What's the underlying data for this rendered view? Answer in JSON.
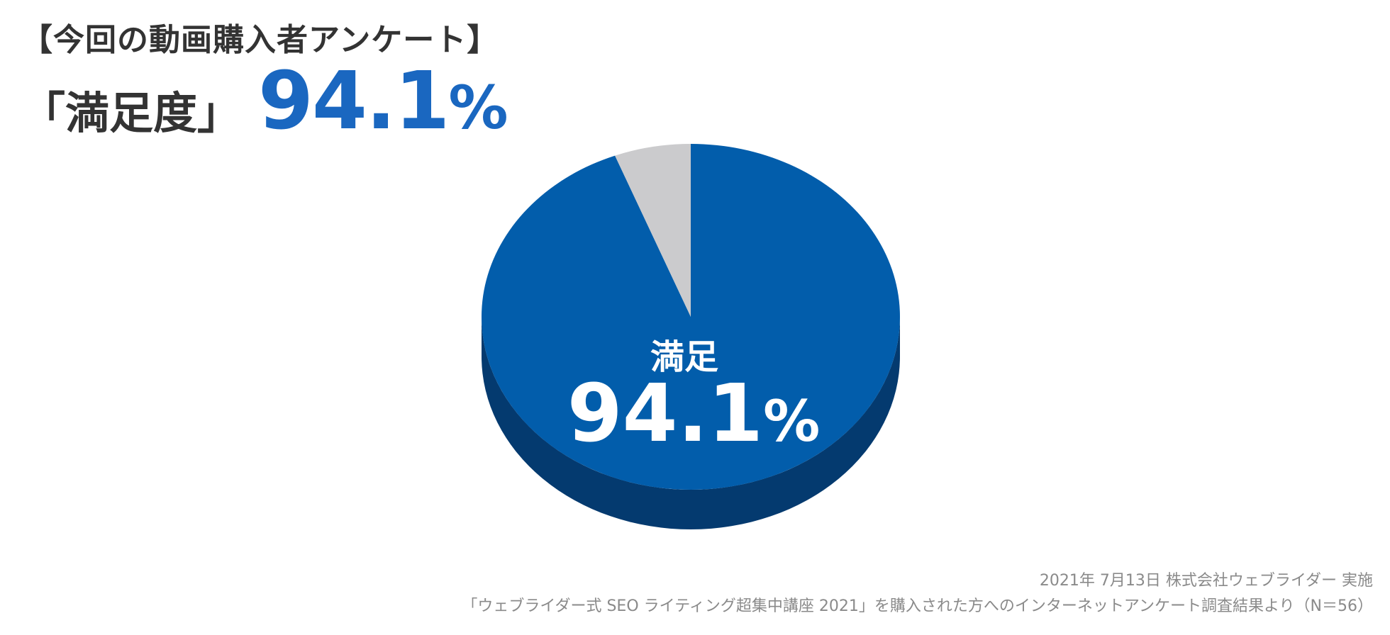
{
  "header": {
    "subtitle": "【今回の動画購入者アンケート】",
    "title_label": "「満足度」",
    "title_value": "94.1",
    "title_unit": "%"
  },
  "chart_data": {
    "type": "pie",
    "style": "3d",
    "slices": [
      {
        "label": "満足",
        "value": 94.1,
        "color": "#025dab",
        "side_color": "#043a6f",
        "display_value": "94.1",
        "display_unit": "%"
      },
      {
        "label": "",
        "value": 5.9,
        "color": "#cbcbcd",
        "side_color": "#a9a9ab"
      }
    ]
  },
  "footer": {
    "line1": "2021年 7月13日 株式会社ウェブライダー 実施",
    "line2": "「ウェブライダー式 SEO ライティング超集中講座 2021」を購入された方へのインターネットアンケート調査結果より（N＝56）"
  }
}
